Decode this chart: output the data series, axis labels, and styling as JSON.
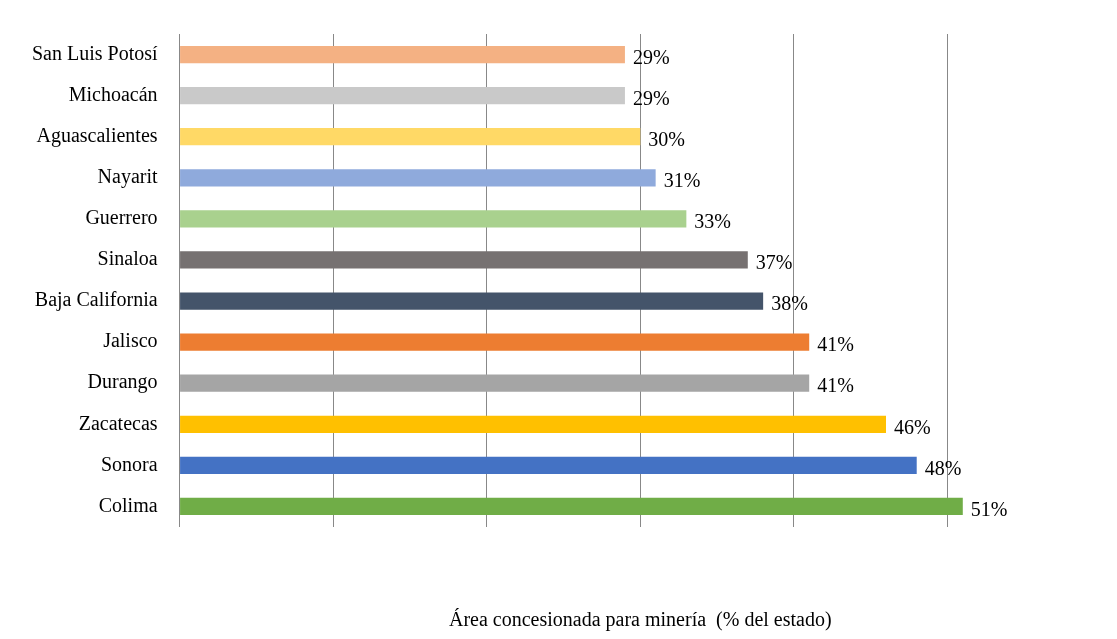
{
  "chart_data": {
    "type": "bar",
    "orientation": "horizontal",
    "xlabel": "Área concesionada para minería  (% del estado)",
    "categories": [
      "San Luis Potosí",
      "Michoacán",
      "Aguascalientes",
      "Nayarit",
      "Guerrero",
      "Sinaloa",
      "Baja California",
      "Jalisco",
      "Durango",
      "Zacatecas",
      "Sonora",
      "Colima"
    ],
    "values": [
      29,
      29,
      30,
      31,
      33,
      37,
      38,
      41,
      41,
      46,
      48,
      51
    ],
    "value_labels": [
      "29%",
      "29%",
      "30%",
      "31%",
      "33%",
      "37%",
      "38%",
      "41%",
      "41%",
      "46%",
      "48%",
      "51%"
    ],
    "colors": [
      "#f4b183",
      "#c9c9c9",
      "#ffd966",
      "#8faadc",
      "#a9d18e",
      "#767171",
      "#44546a",
      "#ed7d31",
      "#a5a5a5",
      "#ffc000",
      "#4472c4",
      "#70ad47"
    ],
    "xticks": [
      {
        "value": 0,
        "label": null
      },
      {
        "value": 10,
        "label": null
      },
      {
        "value": 20,
        "label": null
      },
      {
        "value": 30,
        "label": null
      },
      {
        "value": 40,
        "label": null
      },
      {
        "value": 50,
        "label": null
      }
    ],
    "grid": "x",
    "legend": false
  }
}
